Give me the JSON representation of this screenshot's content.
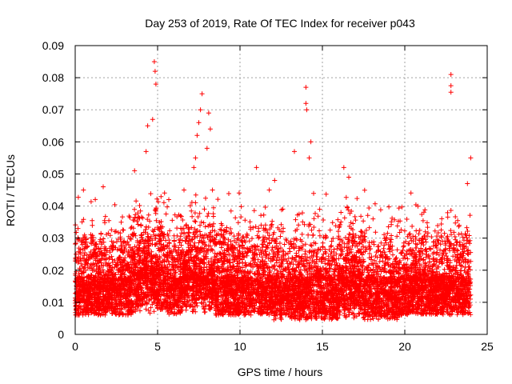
{
  "chart_data": {
    "type": "scatter",
    "title": "Day 253 of 2019, Rate Of TEC Index for receiver p043",
    "xlabel": "GPS time / hours",
    "ylabel": "ROTI / TECUs",
    "xlim": [
      0,
      25
    ],
    "ylim": [
      0,
      0.09
    ],
    "x_ticks": [
      "0",
      "5",
      "10",
      "15",
      "20",
      "25"
    ],
    "y_ticks": [
      "0",
      "0.01",
      "0.02",
      "0.03",
      "0.04",
      "0.05",
      "0.06",
      "0.07",
      "0.08",
      "0.09"
    ],
    "x_tick_values": [
      0,
      5,
      10,
      15,
      20,
      25
    ],
    "y_tick_values": [
      0,
      0.01,
      0.02,
      0.03,
      0.04,
      0.05,
      0.06,
      0.07,
      0.08,
      0.09
    ],
    "grid": true,
    "marker": "+",
    "series": [
      {
        "name": "ROTI",
        "color": "#ff0000",
        "x_range": [
          0,
          24.0
        ],
        "baseline_band": [
          0.004,
          0.03
        ],
        "peaks": [
          {
            "x": 4.8,
            "y": 0.085
          },
          {
            "x": 4.85,
            "y": 0.082
          },
          {
            "x": 4.9,
            "y": 0.078
          },
          {
            "x": 4.7,
            "y": 0.067
          },
          {
            "x": 4.4,
            "y": 0.065
          },
          {
            "x": 4.3,
            "y": 0.057
          },
          {
            "x": 3.6,
            "y": 0.051
          },
          {
            "x": 7.7,
            "y": 0.075
          },
          {
            "x": 7.6,
            "y": 0.07
          },
          {
            "x": 7.5,
            "y": 0.066
          },
          {
            "x": 7.4,
            "y": 0.062
          },
          {
            "x": 7.3,
            "y": 0.055
          },
          {
            "x": 7.2,
            "y": 0.052
          },
          {
            "x": 8.1,
            "y": 0.069
          },
          {
            "x": 8.2,
            "y": 0.064
          },
          {
            "x": 8.0,
            "y": 0.058
          },
          {
            "x": 11.0,
            "y": 0.052
          },
          {
            "x": 12.1,
            "y": 0.048
          },
          {
            "x": 13.3,
            "y": 0.057
          },
          {
            "x": 14.0,
            "y": 0.077
          },
          {
            "x": 14.0,
            "y": 0.072
          },
          {
            "x": 14.05,
            "y": 0.07
          },
          {
            "x": 14.3,
            "y": 0.06
          },
          {
            "x": 14.2,
            "y": 0.055
          },
          {
            "x": 16.3,
            "y": 0.052
          },
          {
            "x": 16.6,
            "y": 0.049
          },
          {
            "x": 22.8,
            "y": 0.081
          },
          {
            "x": 22.8,
            "y": 0.0775
          },
          {
            "x": 22.8,
            "y": 0.0755
          },
          {
            "x": 24.0,
            "y": 0.055
          },
          {
            "x": 23.8,
            "y": 0.047
          },
          {
            "x": 0.5,
            "y": 0.045
          },
          {
            "x": 1.7,
            "y": 0.046
          }
        ]
      }
    ]
  }
}
